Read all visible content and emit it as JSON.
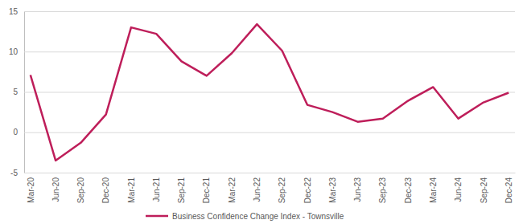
{
  "chart_data": {
    "type": "line",
    "categories": [
      "Mar-20",
      "Jun-20",
      "Sep-20",
      "Dec-20",
      "Mar-21",
      "Jun-21",
      "Sep-21",
      "Dec-21",
      "Mar-22",
      "Jun-22",
      "Sep-22",
      "Dec-22",
      "Mar-23",
      "Jun-23",
      "Sep-23",
      "Dec-23",
      "Mar-24",
      "Jun-24",
      "Sep-24",
      "Dec-24"
    ],
    "series": [
      {
        "name": "Business Confidence Change Index - Townsville",
        "color": "#be1e5a",
        "values": [
          7.1,
          -3.5,
          -1.3,
          2.2,
          13.0,
          12.2,
          8.8,
          7.0,
          9.8,
          13.4,
          10.1,
          3.4,
          2.5,
          1.3,
          1.7,
          3.9,
          5.6,
          1.7,
          3.7,
          4.9
        ]
      }
    ],
    "ylim": [
      -5,
      15
    ],
    "yticks": [
      -5,
      0,
      5,
      10,
      15
    ],
    "grid": true,
    "legend": "bottom"
  }
}
